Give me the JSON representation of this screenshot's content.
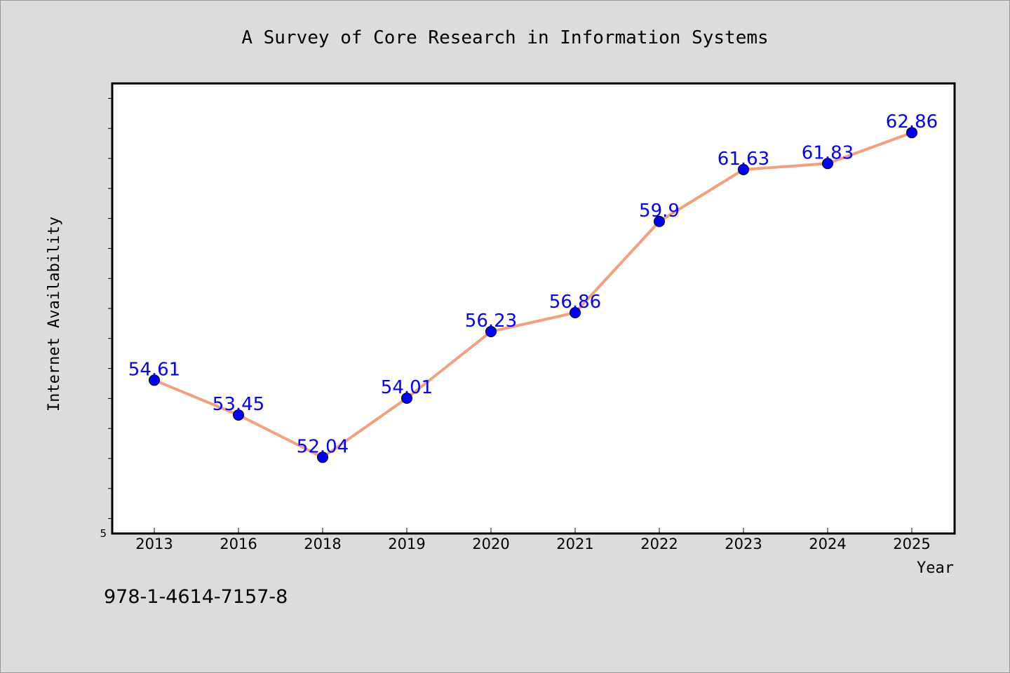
{
  "chart_data": {
    "type": "line",
    "title": "A Survey of Core Research in Information Systems",
    "xlabel": "Year",
    "ylabel": "Internet Availability",
    "categories": [
      "2013",
      "2016",
      "2018",
      "2019",
      "2020",
      "2021",
      "2022",
      "2023",
      "2024",
      "2025"
    ],
    "series": [
      {
        "values": [
          54.61,
          53.45,
          52.04,
          54.01,
          56.23,
          56.86,
          59.9,
          61.63,
          61.83,
          62.86
        ],
        "labels": [
          "54.61",
          "53.45",
          "52.04",
          "54.01",
          "56.23",
          "56.86",
          "59.9",
          "61.63",
          "61.83",
          "62.86"
        ]
      }
    ],
    "y_tick_labels": [
      "5"
    ],
    "ylim": [
      49.5,
      64.5
    ],
    "grid": false,
    "legend": "none"
  },
  "footer": {
    "code": "978-1-4614-7157-8"
  },
  "colors": {
    "background": "#dcdcdc",
    "plot_background": "#ffffff",
    "line": "#f4a07e",
    "marker": "#0000ff",
    "data_label": "#0000ff"
  }
}
